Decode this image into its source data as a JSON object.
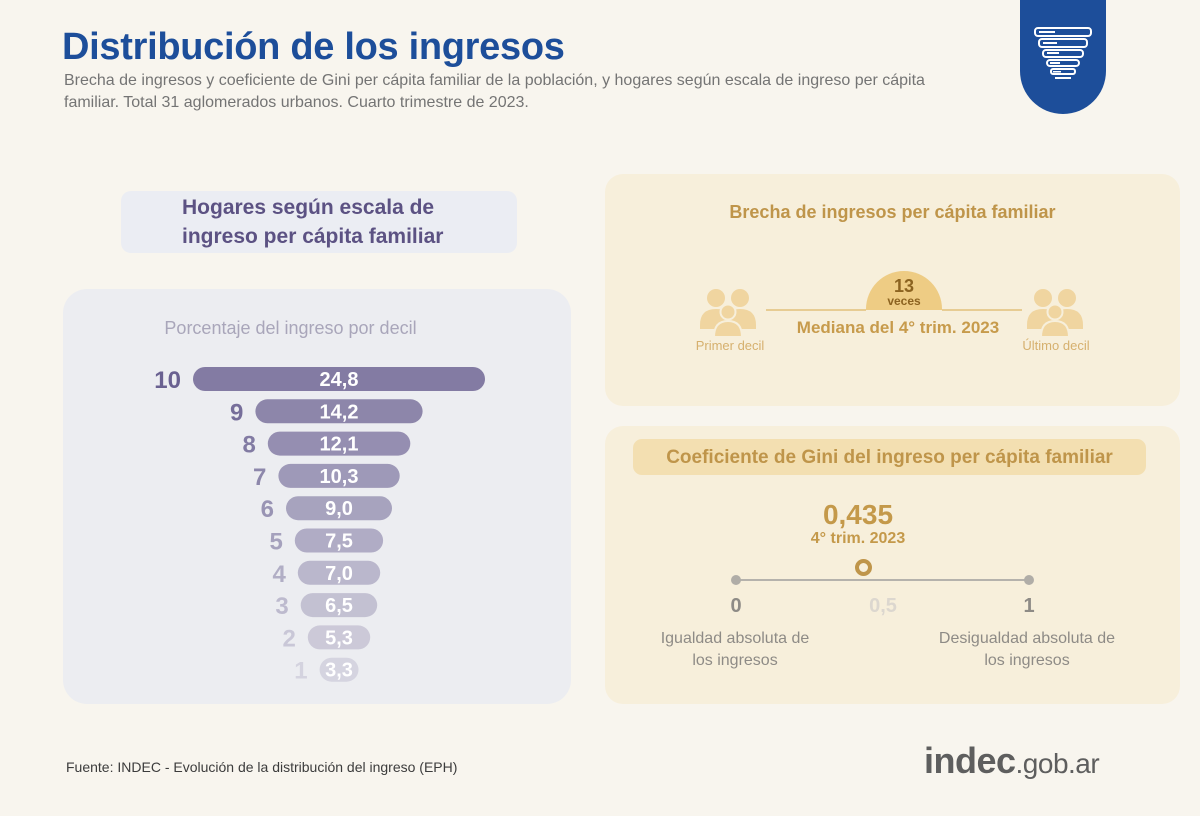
{
  "header": {
    "title": "Distribución de los ingresos",
    "subtitle": "Brecha de ingresos y coeficiente de Gini per cápita familiar de la población, y hogares según escala de ingreso per cápita familiar. Total 31 aglomerados urbanos. Cuarto trimestre de 2023."
  },
  "deciles_section": {
    "heading": "Hogares según escala de ingreso per cápita familiar"
  },
  "chart_data": {
    "type": "bar",
    "title": "Porcentaje del ingreso por decil",
    "categories": [
      "10",
      "9",
      "8",
      "7",
      "6",
      "5",
      "4",
      "3",
      "2",
      "1"
    ],
    "values": [
      24.8,
      14.2,
      12.1,
      10.3,
      9.0,
      7.5,
      7.0,
      6.5,
      5.3,
      3.3
    ],
    "value_labels": [
      "24,8",
      "14,2",
      "12,1",
      "10,3",
      "9,0",
      "7,5",
      "7,0",
      "6,5",
      "5,3",
      "3,3"
    ],
    "orientation": "horizontal-centered-funnel",
    "bar_color": "#837ba3",
    "grid": false
  },
  "income_gap": {
    "title": "Brecha de ingresos per cápita familiar",
    "value": "13",
    "unit": "veces",
    "median_label": "Mediana del 4° trim. 2023",
    "first_label": "Primer decil",
    "last_label": "Último decil",
    "icon": "people-group-icon",
    "color": "#bf954a"
  },
  "gini": {
    "heading": "Coeficiente de Gini del ingreso per cápita familiar",
    "value": "0,435",
    "value_numeric": 0.435,
    "period": "4° trim. 2023",
    "scale_ticks": [
      "0",
      "0,5",
      "1"
    ],
    "left_desc": "Igualdad absoluta de los ingresos",
    "right_desc": "Desigualdad absoluta de los ingresos"
  },
  "footer": {
    "source": "Fuente: INDEC - Evolución de la distribución del ingreso (EPH)",
    "logo_main": "indec",
    "logo_suffix": ".gob.ar"
  },
  "badge_icon": "stacked-layers-icon",
  "colors": {
    "title_blue": "#1d4e9a",
    "purple": "#5c5283",
    "gold": "#bf954a"
  }
}
